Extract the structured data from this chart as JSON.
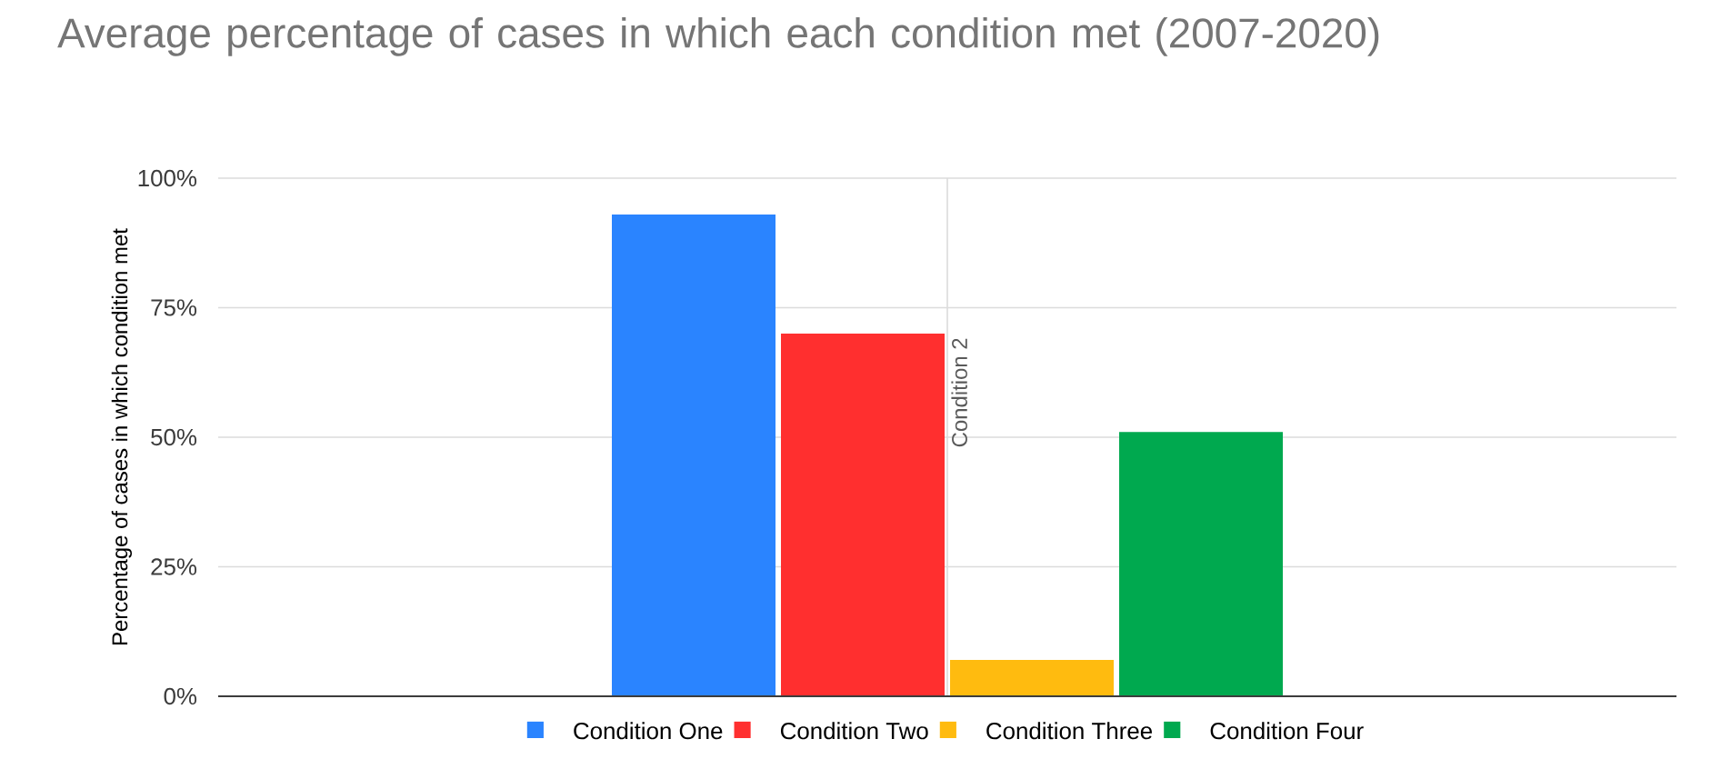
{
  "chart_data": {
    "type": "bar",
    "title": "Average percentage of cases in which each condition met (2007-2020)",
    "ylabel": "Percentage of cases in which condition met",
    "categories": [
      null
    ],
    "series": [
      {
        "name": "Condition One",
        "color": "#2a84ff",
        "values": [
          93
        ]
      },
      {
        "name": "Condition Two",
        "color": "#ff2f2f",
        "values": [
          70
        ]
      },
      {
        "name": "Condition Three",
        "color": "#ffbb0f",
        "values": [
          7
        ]
      },
      {
        "name": "Condition Four",
        "color": "#00a94f",
        "values": [
          51
        ]
      }
    ],
    "ylim": [
      0,
      100
    ],
    "yticks": [
      {
        "value": 0,
        "label": "0%"
      },
      {
        "value": 25,
        "label": "25%"
      },
      {
        "value": 50,
        "label": "50%"
      },
      {
        "value": 75,
        "label": "75%"
      },
      {
        "value": 100,
        "label": "100%"
      }
    ],
    "annotations": [
      "Condition 2"
    ],
    "grid": true,
    "legend": "bottom"
  }
}
